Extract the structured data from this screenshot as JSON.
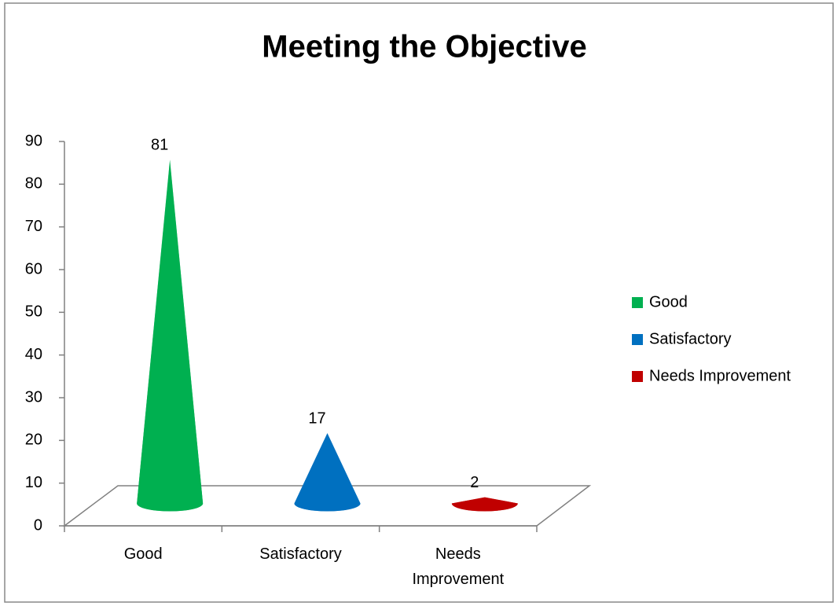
{
  "chart_data": {
    "type": "cone",
    "title": "Meeting the Objective",
    "categories": [
      "Good",
      "Satisfactory",
      "Needs Improvement"
    ],
    "values": [
      81,
      17,
      2
    ],
    "colors": [
      "#00b050",
      "#0070c0",
      "#c00000"
    ],
    "ylim": [
      0,
      90
    ],
    "yticks": [
      0,
      10,
      20,
      30,
      40,
      50,
      60,
      70,
      80,
      90
    ],
    "legend": "right"
  }
}
